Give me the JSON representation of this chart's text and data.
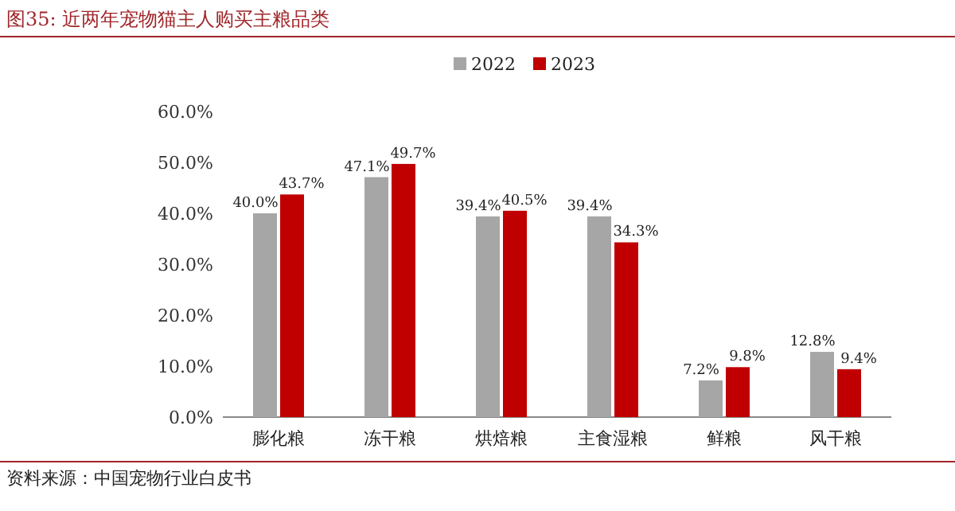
{
  "chart_data": {
    "type": "bar",
    "title": "图35:  近两年宠物猫主人购买主粮品类",
    "categories": [
      "膨化粮",
      "冻干粮",
      "烘焙粮",
      "主食湿粮",
      "鲜粮",
      "风干粮"
    ],
    "series": [
      {
        "name": "2022",
        "color": "#a6a6a6",
        "values": [
          40.0,
          47.1,
          39.4,
          39.4,
          7.2,
          12.8
        ],
        "value_labels": [
          "40.0%",
          "47.1%",
          "39.4%",
          "39.4%",
          "7.2%",
          "12.8%"
        ]
      },
      {
        "name": "2023",
        "color": "#c00000",
        "values": [
          43.7,
          49.7,
          40.5,
          34.3,
          9.8,
          9.4
        ],
        "value_labels": [
          "43.7%",
          "49.7%",
          "40.5%",
          "34.3%",
          "9.8%",
          "9.4%"
        ]
      }
    ],
    "ylim": [
      0,
      60
    ],
    "yticks": [
      {
        "value": 0,
        "label": "0.0%"
      },
      {
        "value": 10,
        "label": "10.0%"
      },
      {
        "value": 20,
        "label": "20.0%"
      },
      {
        "value": 30,
        "label": "30.0%"
      },
      {
        "value": 40,
        "label": "40.0%"
      },
      {
        "value": 50,
        "label": "50.0%"
      },
      {
        "value": 60,
        "label": "60.0%"
      }
    ],
    "legend": "top",
    "annotations": [
      "资料来源：中国宠物行业白皮书"
    ]
  }
}
